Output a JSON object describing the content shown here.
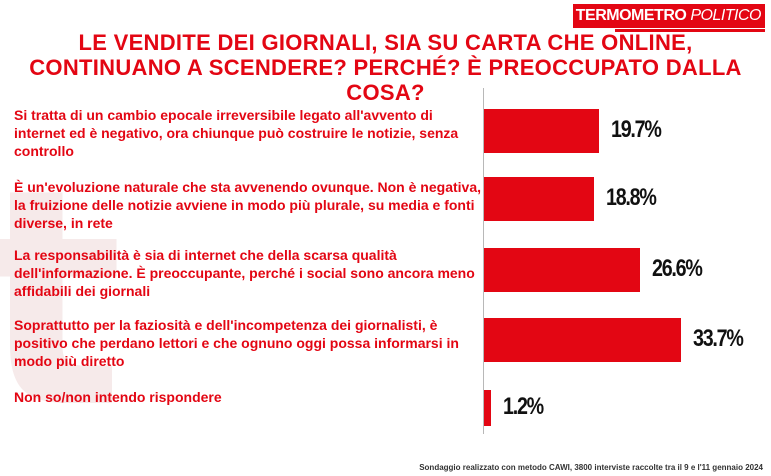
{
  "logo": {
    "part1": "TERMOMETRO",
    "part2": "POLITICO"
  },
  "chart_data": {
    "type": "bar",
    "orientation": "horizontal",
    "title_lines": [
      "LE VENDITE DEI GIORNALI, SIA SU CARTA CHE ONLINE,",
      "CONTINUANO A SCENDERE? PERCHÉ? È PREOCCUPATO DALLA",
      "COSA?"
    ],
    "categories": [
      "Si tratta di un cambio epocale irreversibile legato all'avvento di internet ed è negativo, ora chiunque può costruire le notizie, senza controllo",
      "È un'evoluzione naturale che sta avvenendo ovunque. Non è negativa, la fruizione delle notizie avviene in modo più plurale, su media e fonti diverse, in rete",
      "La responsabilità  è sia di internet che della scarsa qualità dell'informazione. È preoccupante, perché i social sono ancora meno affidabili dei giornali",
      "Soprattutto per la faziosità  e dell'incompetenza dei giornalisti, è positivo che perdano lettori e che ognuno oggi possa informarsi in modo più diretto",
      "Non so/non intendo rispondere"
    ],
    "values": [
      19.7,
      18.8,
      26.6,
      33.7,
      1.2
    ],
    "value_labels": [
      "19.7%",
      "18.8%",
      "26.6%",
      "33.7%",
      "1.2%"
    ],
    "unit": "%",
    "bar_color": "#e30613",
    "grid": false,
    "legend": "none"
  },
  "footnote": "Sondaggio realizzato con metodo CAWI, 3800 interviste raccolte tra il 9 e l'11 gennaio 2024"
}
